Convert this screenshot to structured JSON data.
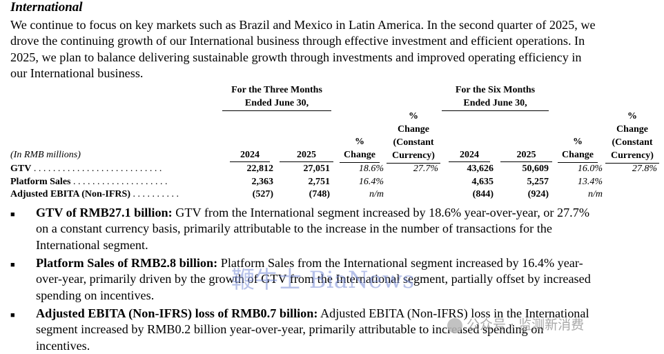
{
  "heading": "International",
  "intro": [
    "We continue to focus on key markets such as Brazil and Mexico in Latin America. In the second quarter of 2025, we",
    "drove the continuing growth of our International business through effective investment and efficient operations. In",
    "2025, we plan to balance delivering sustainable growth through investments and improved operating efficiency in",
    "our International business."
  ],
  "table": {
    "group1": [
      "For the Three Months",
      "Ended June 30,"
    ],
    "group2": [
      "For the Six Months",
      "Ended June 30,"
    ],
    "unit": "(In RMB millions)",
    "year_a": "2024",
    "year_b": "2025",
    "pct": "%",
    "change": "Change",
    "constant": "(Constant",
    "currency": "Currency)",
    "rows": [
      {
        "label": "GTV",
        "dots": " . . . . . . . . . . . . . . . . . . . . . . . . . . .",
        "q24": "22,812",
        "q25": "27,051",
        "qchg": "18.6%",
        "qcc": "27.7%",
        "s24": "43,626",
        "s25": "50,609",
        "schg": "16.0%",
        "scc": "27.8%"
      },
      {
        "label": "Platform Sales",
        "dots": " . . . . . . . . . . . . . . . . . . . .",
        "q24": "2,363",
        "q25": "2,751",
        "qchg": "16.4%",
        "qcc": "",
        "s24": "4,635",
        "s25": "5,257",
        "schg": "13.4%",
        "scc": ""
      },
      {
        "label": "Adjusted EBITA (Non-IFRS)",
        "dots": " . . . . . . . . . .",
        "q24": "(527)",
        "q25": "(748)",
        "qchg": "n/m",
        "qcc": "",
        "s24": "(844)",
        "s25": "(924)",
        "schg": "n/m",
        "scc": ""
      }
    ]
  },
  "bullets": [
    {
      "bold": "GTV of RMB27.1 billion:",
      "lines": [
        " GTV from the International segment increased by 18.6% year-over-year, or 27.7%",
        "on a constant currency basis, primarily attributable to the increase in the number of transactions for the",
        "International segment."
      ]
    },
    {
      "bold": "Platform Sales of RMB2.8 billion:",
      "lines": [
        " Platform Sales from the International segment increased by 16.4% year-",
        "over-year, primarily driven by the growth of GTV from the International segment, partially offset by increased",
        "spending on incentives."
      ]
    },
    {
      "bold": "Adjusted EBITA (Non-IFRS) loss of RMB0.7 billion:",
      "lines": [
        " Adjusted EBITA (Non-IFRS) loss in the International",
        "segment increased by RMB0.2 billion year-over-year, primarily attributable to increased spending on",
        "incentives."
      ]
    }
  ],
  "bullet_mark": "■",
  "watermarks": {
    "main": "鞭牛士 BiaNews",
    "account": "公众号 · 监测新消费"
  }
}
